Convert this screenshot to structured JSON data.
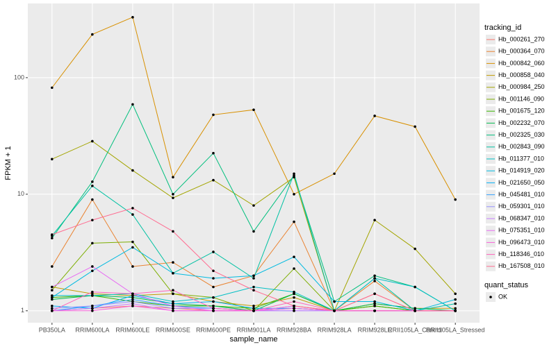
{
  "chart_data": {
    "type": "line",
    "x_label": "sample_name",
    "y_label": "FPKM + 1",
    "log_y": true,
    "grid": true,
    "legend_title": "tracking_id",
    "legend_position": "right",
    "point_color": "#000000",
    "shape_legend": {
      "title": "quant_status",
      "labels": [
        "OK"
      ]
    },
    "categories": [
      "PB350LA",
      "RRIM600LA",
      "RRIM600LE",
      "RRIM600SE",
      "RRIM600PE",
      "RRIM901LA",
      "RRIM928BA",
      "RRIM928LA",
      "RRIM928LE",
      "RRII105LA_Control",
      "RRII105LA_Stressed"
    ],
    "ylim": [
      0.79,
      433
    ],
    "yticks": [
      1,
      10,
      100
    ],
    "series": [
      {
        "name": "Hb_000261_270",
        "color": "#F8766D",
        "values": [
          1.0,
          1.05,
          1.1,
          1.05,
          1.0,
          1.0,
          1.1,
          1.0,
          1.4,
          1.0,
          1.0
        ]
      },
      {
        "name": "Hb_000364_070",
        "color": "#EA8331",
        "values": [
          2.4,
          9.0,
          2.4,
          2.6,
          1.6,
          2.0,
          5.8,
          1.0,
          1.8,
          1.0,
          1.0
        ]
      },
      {
        "name": "Hb_000842_060",
        "color": "#D89000",
        "values": [
          82,
          235,
          330,
          14,
          48,
          53,
          10,
          15,
          47,
          38,
          9
        ]
      },
      {
        "name": "Hb_000858_040",
        "color": "#C09B00",
        "values": [
          1.6,
          1.4,
          1.35,
          1.4,
          1.2,
          1.1,
          1.3,
          1.0,
          1.15,
          1.05,
          1.05
        ]
      },
      {
        "name": "Hb_000984_250",
        "color": "#A3A500",
        "values": [
          20,
          28.5,
          16,
          9.3,
          13.2,
          8,
          14,
          1.0,
          6,
          3.4,
          1.4
        ]
      },
      {
        "name": "Hb_001146_090",
        "color": "#7CAE00",
        "values": [
          1.5,
          3.8,
          3.9,
          1.4,
          1.3,
          1.0,
          2.3,
          1.0,
          1.1,
          1.0,
          1.0
        ]
      },
      {
        "name": "Hb_001675_120",
        "color": "#39B600",
        "values": [
          1.3,
          1.35,
          1.2,
          1.1,
          1.1,
          1.05,
          1.4,
          1.0,
          1.1,
          1.0,
          1.0
        ]
      },
      {
        "name": "Hb_002232_070",
        "color": "#00BB4E",
        "values": [
          1.25,
          1.35,
          1.3,
          1.15,
          1.1,
          1.0,
          1.4,
          1.0,
          1.15,
          1.05,
          1.0
        ]
      },
      {
        "name": "Hb_002325_030",
        "color": "#00BF7D",
        "values": [
          4.2,
          12.8,
          59,
          10,
          22.5,
          4.8,
          14.5,
          1.2,
          2.0,
          1.6,
          1.0
        ]
      },
      {
        "name": "Hb_002843_090",
        "color": "#00C1A3",
        "values": [
          4.4,
          11.8,
          6.7,
          2.1,
          3.2,
          1.9,
          15,
          1.0,
          1.9,
          1.0,
          1.15
        ]
      },
      {
        "name": "Hb_011377_010",
        "color": "#00BFC4",
        "values": [
          1.35,
          1.35,
          1.4,
          1.2,
          1.3,
          1.6,
          1.45,
          1.0,
          1.9,
          1.6,
          1.0
        ]
      },
      {
        "name": "Hb_014919_020",
        "color": "#00BAE0",
        "values": [
          1.3,
          2.2,
          3.5,
          2.1,
          1.9,
          2.0,
          2.9,
          1.2,
          1.2,
          1.0,
          1.25
        ]
      },
      {
        "name": "Hb_021650_050",
        "color": "#00B0F6",
        "values": [
          1.1,
          1.05,
          1.35,
          1.15,
          1.2,
          1.05,
          1.05,
          1.0,
          1.0,
          1.0,
          1.0
        ]
      },
      {
        "name": "Hb_045481_010",
        "color": "#35A2FF",
        "values": [
          1.0,
          1.1,
          1.25,
          1.1,
          1.05,
          1.0,
          1.05,
          1.0,
          1.0,
          1.0,
          1.0
        ]
      },
      {
        "name": "Hb_059301_010",
        "color": "#9590FF",
        "values": [
          1.05,
          1.1,
          1.2,
          1.05,
          1.05,
          1.0,
          1.0,
          1.0,
          1.0,
          1.0,
          1.0
        ]
      },
      {
        "name": "Hb_068347_010",
        "color": "#C77CFF",
        "values": [
          1.0,
          1.05,
          1.15,
          1.0,
          1.0,
          1.0,
          1.0,
          1.0,
          1.0,
          1.0,
          1.0
        ]
      },
      {
        "name": "Hb_075351_010",
        "color": "#E76BF3",
        "values": [
          1.6,
          2.4,
          1.4,
          1.1,
          1.0,
          1.0,
          1.1,
          1.0,
          1.0,
          1.0,
          1.0
        ]
      },
      {
        "name": "Hb_096473_010",
        "color": "#FA62DB",
        "values": [
          1.0,
          1.0,
          1.1,
          1.0,
          1.0,
          1.0,
          1.05,
          1.0,
          1.0,
          1.0,
          1.0
        ]
      },
      {
        "name": "Hb_118346_010",
        "color": "#FF62BC",
        "values": [
          1.0,
          1.45,
          1.4,
          1.5,
          1.05,
          1.0,
          1.2,
          1.0,
          1.0,
          1.0,
          1.0
        ]
      },
      {
        "name": "Hb_167508_010",
        "color": "#FF6C91",
        "values": [
          4.5,
          6.0,
          7.6,
          4.8,
          2.2,
          1.5,
          1.1,
          1.0,
          1.4,
          1.0,
          1.0
        ]
      }
    ]
  }
}
